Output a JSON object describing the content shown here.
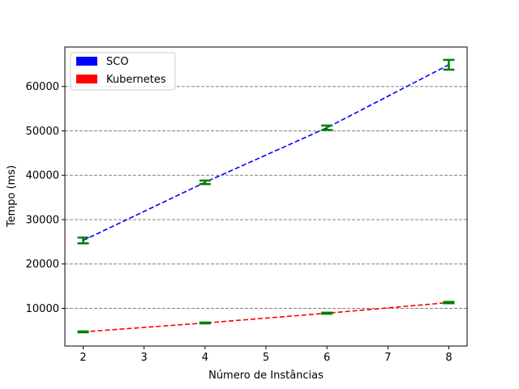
{
  "chart_data": {
    "type": "line",
    "title": "",
    "xlabel": "Número de Instâncias",
    "ylabel": "Tempo (ms)",
    "x": [
      2,
      4,
      6,
      8
    ],
    "xlim": [
      1.7,
      8.3
    ],
    "ylim": [
      1500,
      68900
    ],
    "xticks": [
      "2",
      "3",
      "4",
      "5",
      "6",
      "7",
      "8"
    ],
    "yticks": [
      "10000",
      "20000",
      "30000",
      "40000",
      "50000",
      "60000"
    ],
    "grid": "horizontal dashed",
    "legend_position": "top-left",
    "error_bar_color": "#008000",
    "series": [
      {
        "name": "SCO",
        "color": "#0000ff",
        "values": [
          25300,
          38400,
          50700,
          64900
        ],
        "errors": [
          650,
          400,
          500,
          1100
        ]
      },
      {
        "name": "Kubernetes",
        "color": "#ff0000",
        "values": [
          4700,
          6700,
          8900,
          11300
        ],
        "errors": [
          100,
          100,
          120,
          150
        ]
      }
    ]
  }
}
